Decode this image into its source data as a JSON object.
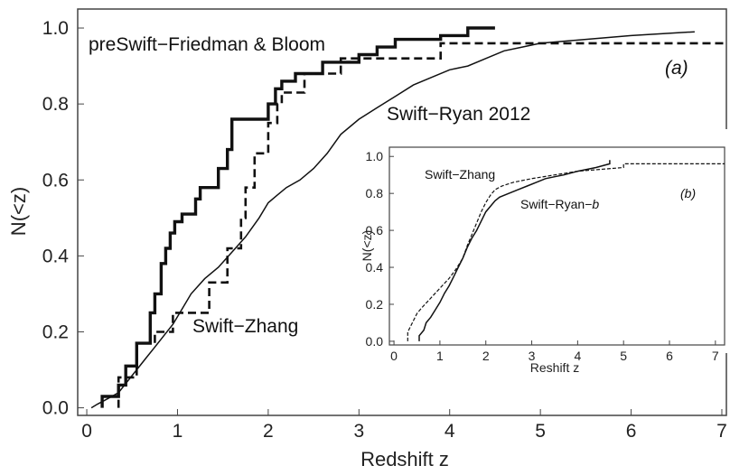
{
  "chart_data": [
    {
      "type": "line",
      "panel": "main",
      "xlabel": "Redshift z",
      "ylabel": "N(<z)",
      "xlim": [
        -0.1,
        7.05
      ],
      "ylim": [
        -0.02,
        1.05
      ],
      "xticks": [
        "0",
        "1",
        "2",
        "3",
        "4",
        "5",
        "6",
        "7"
      ],
      "yticks": [
        "0.0",
        "0.2",
        "0.4",
        "0.6",
        "0.8",
        "1.0"
      ],
      "panel_label": "(a)",
      "annotations": [
        "preSwift−Friedman & Bloom",
        "Swift−Ryan 2012",
        "Swift−Zhang"
      ],
      "series": [
        {
          "name": "preSwift−Friedman & Bloom",
          "style": "thick-solid",
          "x": [
            0.17,
            0.17,
            0.35,
            0.35,
            0.43,
            0.43,
            0.55,
            0.55,
            0.7,
            0.7,
            0.75,
            0.75,
            0.82,
            0.82,
            0.87,
            0.87,
            0.92,
            0.92,
            0.97,
            0.97,
            1.05,
            1.05,
            1.2,
            1.2,
            1.25,
            1.25,
            1.45,
            1.45,
            1.55,
            1.55,
            1.6,
            1.6,
            2.0,
            2.0,
            2.08,
            2.08,
            2.15,
            2.15,
            2.3,
            2.3,
            2.6,
            2.6,
            3.0,
            3.0,
            3.2,
            3.2,
            3.4,
            3.4,
            3.9,
            3.9,
            4.2,
            4.2,
            4.5,
            4.5
          ],
          "y": [
            0.0,
            0.03,
            0.03,
            0.06,
            0.06,
            0.11,
            0.11,
            0.17,
            0.17,
            0.25,
            0.25,
            0.3,
            0.3,
            0.38,
            0.38,
            0.42,
            0.42,
            0.46,
            0.46,
            0.49,
            0.49,
            0.51,
            0.51,
            0.55,
            0.55,
            0.58,
            0.58,
            0.63,
            0.63,
            0.68,
            0.68,
            0.76,
            0.76,
            0.8,
            0.8,
            0.84,
            0.84,
            0.86,
            0.86,
            0.88,
            0.88,
            0.91,
            0.91,
            0.93,
            0.93,
            0.95,
            0.95,
            0.97,
            0.97,
            0.98,
            0.98,
            1.0,
            1.0,
            1.0
          ]
        },
        {
          "name": "Swift−Ryan 2012",
          "style": "thin-solid",
          "x": [
            0.05,
            0.12,
            0.2,
            0.35,
            0.45,
            0.55,
            0.65,
            0.75,
            0.85,
            0.95,
            1.05,
            1.15,
            1.3,
            1.45,
            1.6,
            1.75,
            1.9,
            2.0,
            2.1,
            2.2,
            2.35,
            2.5,
            2.65,
            2.8,
            3.0,
            3.2,
            3.4,
            3.6,
            3.8,
            4.0,
            4.2,
            4.4,
            4.6,
            4.8,
            5.0,
            5.5,
            6.0,
            6.7
          ],
          "y": [
            0.0,
            0.01,
            0.02,
            0.04,
            0.07,
            0.1,
            0.13,
            0.16,
            0.19,
            0.22,
            0.26,
            0.3,
            0.34,
            0.37,
            0.41,
            0.45,
            0.5,
            0.54,
            0.56,
            0.58,
            0.6,
            0.63,
            0.67,
            0.72,
            0.76,
            0.79,
            0.82,
            0.85,
            0.87,
            0.89,
            0.9,
            0.92,
            0.94,
            0.95,
            0.96,
            0.97,
            0.98,
            0.99
          ]
        },
        {
          "name": "Swift−Zhang",
          "style": "thick-dashed",
          "x": [
            0.35,
            0.35,
            0.55,
            0.55,
            0.75,
            0.75,
            0.95,
            0.95,
            1.35,
            1.35,
            1.55,
            1.55,
            1.7,
            1.7,
            1.75,
            1.75,
            1.85,
            1.85,
            2.0,
            2.0,
            2.1,
            2.1,
            2.15,
            2.15,
            2.4,
            2.4,
            2.8,
            2.8,
            3.9,
            3.9,
            5.0,
            5.0,
            7.05
          ],
          "y": [
            0.0,
            0.08,
            0.08,
            0.17,
            0.17,
            0.2,
            0.2,
            0.25,
            0.25,
            0.33,
            0.33,
            0.42,
            0.42,
            0.5,
            0.5,
            0.58,
            0.58,
            0.67,
            0.67,
            0.75,
            0.75,
            0.8,
            0.8,
            0.83,
            0.83,
            0.88,
            0.88,
            0.92,
            0.92,
            0.96,
            0.96,
            0.96,
            0.96
          ]
        }
      ]
    },
    {
      "type": "line",
      "panel": "inset",
      "xlabel": "Reshift z",
      "ylabel": "N(<z)",
      "xlim": [
        -0.1,
        7.2
      ],
      "ylim": [
        -0.02,
        1.05
      ],
      "xticks": [
        "0",
        "1",
        "2",
        "3",
        "4",
        "5",
        "6",
        "7"
      ],
      "yticks": [
        "0.0",
        "0.2",
        "0.4",
        "0.6",
        "0.8",
        "1.0"
      ],
      "panel_label": "(b)",
      "annotations": [
        "Swift−Zhang",
        "Swift−Ryan−b"
      ],
      "series": [
        {
          "name": "Swift−Ryan−b",
          "style": "thin-solid",
          "x": [
            0.55,
            0.55,
            0.65,
            0.7,
            0.8,
            0.9,
            1.0,
            1.1,
            1.2,
            1.3,
            1.4,
            1.5,
            1.6,
            1.7,
            1.8,
            1.9,
            2.0,
            2.1,
            2.2,
            2.3,
            2.5,
            2.7,
            2.9,
            3.1,
            3.3,
            3.5,
            3.7,
            4.0,
            4.4,
            4.7,
            4.7
          ],
          "y": [
            0.0,
            0.03,
            0.06,
            0.1,
            0.13,
            0.17,
            0.21,
            0.26,
            0.3,
            0.35,
            0.4,
            0.45,
            0.51,
            0.56,
            0.6,
            0.65,
            0.7,
            0.73,
            0.76,
            0.78,
            0.8,
            0.82,
            0.84,
            0.86,
            0.88,
            0.89,
            0.9,
            0.92,
            0.94,
            0.96,
            0.98
          ]
        },
        {
          "name": "Swift−Zhang",
          "style": "thin-dashed",
          "x": [
            0.3,
            0.3,
            0.5,
            0.6,
            0.75,
            0.9,
            1.05,
            1.2,
            1.35,
            1.5,
            1.6,
            1.7,
            1.8,
            1.9,
            2.0,
            2.1,
            2.2,
            2.35,
            2.6,
            3.0,
            3.5,
            4.0,
            5.0,
            5.0,
            7.2
          ],
          "y": [
            0.0,
            0.05,
            0.15,
            0.18,
            0.22,
            0.26,
            0.3,
            0.34,
            0.39,
            0.45,
            0.52,
            0.58,
            0.64,
            0.7,
            0.75,
            0.79,
            0.82,
            0.84,
            0.86,
            0.88,
            0.9,
            0.92,
            0.94,
            0.96,
            0.96
          ]
        }
      ]
    }
  ]
}
